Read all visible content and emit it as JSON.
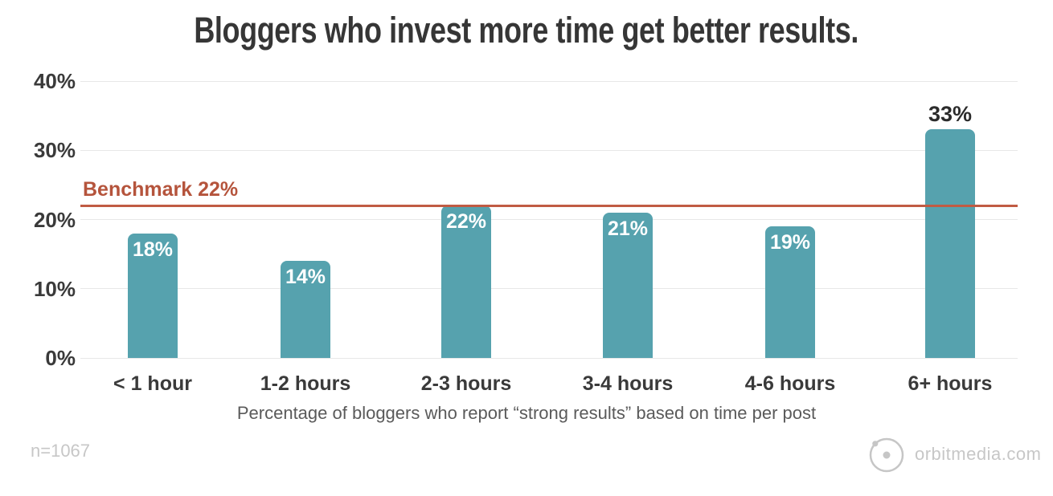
{
  "title": "Bloggers who invest more time get better results.",
  "benchmark": {
    "label": "Benchmark 22%",
    "value": 22
  },
  "caption": "Percentage of bloggers who report “strong results” based on time per post",
  "footer": {
    "sample_size": "n=1067",
    "logo_text": "orbitmedia.com"
  },
  "colors": {
    "bar": "#56a2ae",
    "benchmark_line": "#c05b43",
    "benchmark_label": "#b5543c",
    "title_text": "#363636",
    "axis_text": "#3a3a3a",
    "bar_label_inside": "#ffffff",
    "bar_label_above": "#2b2b2b",
    "gridline": "#e8e8e8",
    "caption_text": "#5a5a5a",
    "muted_text": "#c7c7c7"
  },
  "chart_data": {
    "type": "bar",
    "title": "Bloggers who invest more time get better results.",
    "categories": [
      "< 1 hour",
      "1-2 hours",
      "2-3 hours",
      "3-4 hours",
      "4-6 hours",
      "6+ hours"
    ],
    "values": [
      18,
      14,
      22,
      21,
      19,
      33
    ],
    "value_labels": [
      "18%",
      "14%",
      "22%",
      "21%",
      "19%",
      "33%"
    ],
    "label_positions": [
      "inside",
      "inside",
      "inside",
      "inside",
      "inside",
      "above"
    ],
    "xlabel": "Percentage of bloggers who report “strong results” based on time per post",
    "ylabel": "",
    "ylim": [
      0,
      40
    ],
    "y_ticks": [
      {
        "pct": 0,
        "label": "0%"
      },
      {
        "pct": 10,
        "label": "10%"
      },
      {
        "pct": 20,
        "label": "20%"
      },
      {
        "pct": 30,
        "label": "30%"
      },
      {
        "pct": 40,
        "label": "40%"
      }
    ],
    "grid": true,
    "legend": null,
    "benchmark": {
      "value": 22,
      "label": "Benchmark 22%"
    },
    "sample_size": "n=1067",
    "source": "orbitmedia.com"
  }
}
